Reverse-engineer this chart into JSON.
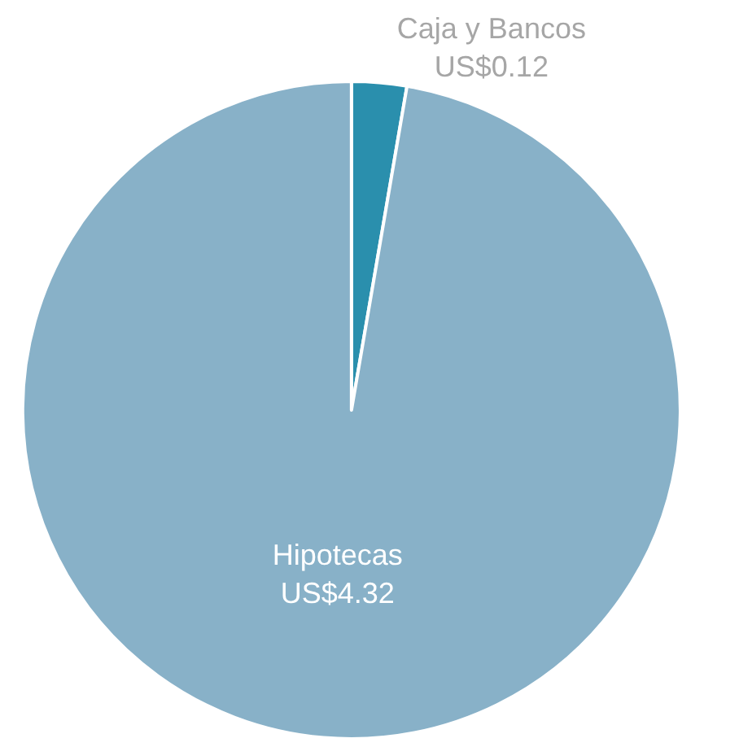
{
  "chart_data": {
    "type": "pie",
    "categories": [
      "Caja y Bancos",
      "Hipotecas"
    ],
    "values": [
      0.12,
      4.32
    ],
    "value_labels": [
      "US$0.12",
      "US$4.32"
    ],
    "colors": [
      "#2a8fad",
      "#88b1c8"
    ],
    "legend": false
  }
}
